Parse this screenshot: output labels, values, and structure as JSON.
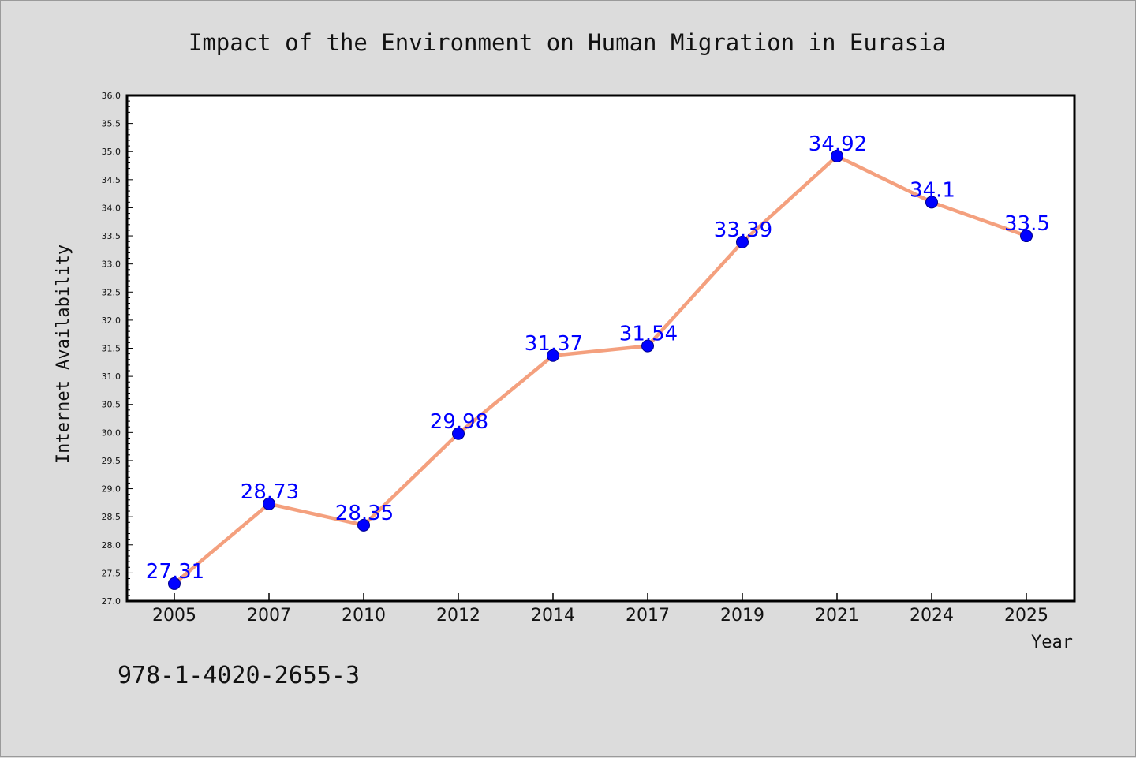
{
  "chart_data": {
    "type": "line",
    "title": "Impact of the Environment on Human Migration in Eurasia",
    "xlabel": "Year",
    "ylabel": "Internet Availability",
    "categories": [
      "2005",
      "2007",
      "2010",
      "2012",
      "2014",
      "2017",
      "2019",
      "2021",
      "2024",
      "2025"
    ],
    "series": [
      {
        "values": [
          27.31,
          28.73,
          28.35,
          29.98,
          31.37,
          31.54,
          33.39,
          34.92,
          34.1,
          33.5
        ],
        "labels": [
          "27.31",
          "28.73",
          "28.35",
          "29.98",
          "31.37",
          "31.54",
          "33.39",
          "34.92",
          "34.1",
          "33.5"
        ]
      }
    ],
    "ylim": [
      27.0,
      36.0
    ],
    "yticks": [
      "27.0",
      "27.5",
      "28.0",
      "28.5",
      "29.0",
      "29.5",
      "30.0",
      "30.5",
      "31.0",
      "31.5",
      "32.0",
      "32.5",
      "33.0",
      "33.5",
      "34.0",
      "34.5",
      "35.0",
      "35.5",
      "36.0"
    ],
    "grid": false,
    "legend": "none",
    "colors": {
      "line": "#f4a07e",
      "marker": "#0000ff",
      "label": "#0000ff",
      "background": "#dcdcdc",
      "plot_background": "#ffffff"
    }
  },
  "annotation": {
    "isbn": "978-1-4020-2655-3"
  }
}
